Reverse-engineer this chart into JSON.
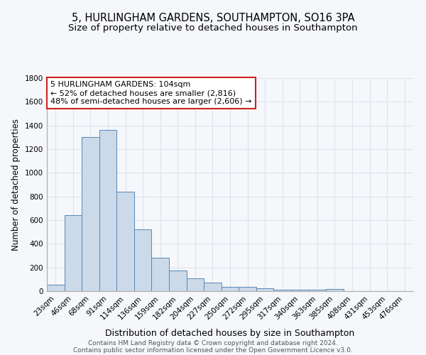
{
  "title_line1": "5, HURLINGHAM GARDENS, SOUTHAMPTON, SO16 3PA",
  "title_line2": "Size of property relative to detached houses in Southampton",
  "xlabel": "Distribution of detached houses by size in Southampton",
  "ylabel": "Number of detached properties",
  "categories": [
    "23sqm",
    "46sqm",
    "68sqm",
    "91sqm",
    "114sqm",
    "136sqm",
    "159sqm",
    "182sqm",
    "204sqm",
    "227sqm",
    "250sqm",
    "272sqm",
    "295sqm",
    "317sqm",
    "340sqm",
    "363sqm",
    "385sqm",
    "408sqm",
    "431sqm",
    "453sqm",
    "476sqm"
  ],
  "values": [
    55,
    640,
    1300,
    1360,
    840,
    525,
    285,
    175,
    110,
    70,
    38,
    38,
    25,
    15,
    10,
    10,
    18,
    0,
    0,
    0,
    0
  ],
  "bar_color": "#ccd9e8",
  "bar_edge_color": "#5588bb",
  "background_color": "#f5f7fa",
  "grid_color": "#dde4ee",
  "ylim": [
    0,
    1800
  ],
  "yticks": [
    0,
    200,
    400,
    600,
    800,
    1000,
    1200,
    1400,
    1600,
    1800
  ],
  "annotation_text_line1": "5 HURLINGHAM GARDENS: 104sqm",
  "annotation_text_line2": "← 52% of detached houses are smaller (2,816)",
  "annotation_text_line3": "48% of semi-detached houses are larger (2,606) →",
  "annotation_box_color": "#ffffff",
  "annotation_border_color": "#cc2222",
  "footer_line1": "Contains HM Land Registry data © Crown copyright and database right 2024.",
  "footer_line2": "Contains public sector information licensed under the Open Government Licence v3.0.",
  "title_fontsize": 10.5,
  "subtitle_fontsize": 9.5,
  "xlabel_fontsize": 9,
  "ylabel_fontsize": 8.5,
  "tick_fontsize": 7.5,
  "annotation_fontsize": 8,
  "footer_fontsize": 6.5
}
